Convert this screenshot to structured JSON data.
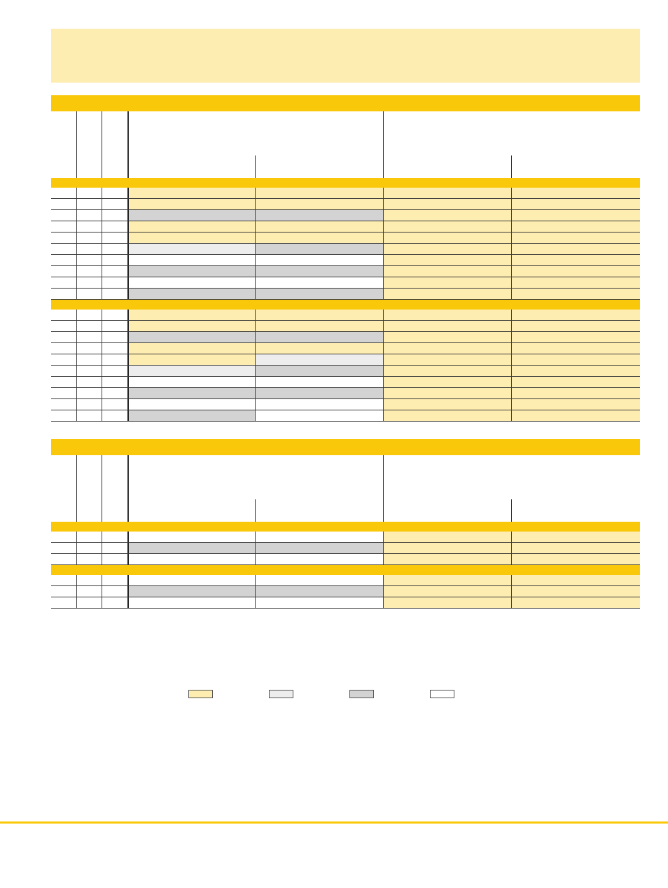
{
  "colors": {
    "yellow": "#fdedb0",
    "light_gray": "#ededed",
    "gray": "#d3d3d3",
    "white": "#ffffff",
    "accent": "#fac80a"
  },
  "tables": [
    {
      "groups": [
        {
          "rows": [
            [
              "yellow",
              "yellow",
              "yellow",
              "yellow"
            ],
            [
              "yellow",
              "yellow",
              "yellow",
              "yellow"
            ],
            [
              "gray",
              "gray",
              "yellow",
              "yellow"
            ],
            [
              "yellow",
              "yellow",
              "yellow",
              "yellow"
            ],
            [
              "yellow",
              "yellow",
              "yellow",
              "yellow"
            ],
            [
              "light_gray",
              "gray",
              "yellow",
              "yellow"
            ],
            [
              "white",
              "white",
              "yellow",
              "yellow"
            ],
            [
              "gray",
              "gray",
              "yellow",
              "yellow"
            ],
            [
              "white",
              "white",
              "yellow",
              "yellow"
            ],
            [
              "gray",
              "gray",
              "yellow",
              "yellow"
            ]
          ]
        },
        {
          "rows": [
            [
              "yellow",
              "yellow",
              "yellow",
              "yellow"
            ],
            [
              "yellow",
              "yellow",
              "yellow",
              "yellow"
            ],
            [
              "gray",
              "gray",
              "yellow",
              "yellow"
            ],
            [
              "yellow",
              "yellow",
              "yellow",
              "yellow"
            ],
            [
              "yellow",
              "light_gray",
              "yellow",
              "yellow"
            ],
            [
              "light_gray",
              "gray",
              "yellow",
              "yellow"
            ],
            [
              "white",
              "white",
              "yellow",
              "yellow"
            ],
            [
              "gray",
              "gray",
              "yellow",
              "yellow"
            ],
            [
              "white",
              "white",
              "yellow",
              "yellow"
            ],
            [
              "gray",
              "white",
              "yellow",
              "yellow"
            ]
          ]
        }
      ]
    },
    {
      "groups": [
        {
          "rows": [
            [
              "white",
              "white",
              "yellow",
              "yellow"
            ],
            [
              "gray",
              "gray",
              "yellow",
              "yellow"
            ],
            [
              "white",
              "white",
              "yellow",
              "yellow"
            ]
          ]
        },
        {
          "rows": [
            [
              "white",
              "white",
              "yellow",
              "yellow"
            ],
            [
              "gray",
              "gray",
              "yellow",
              "yellow"
            ],
            [
              "white",
              "white",
              "yellow",
              "yellow"
            ]
          ]
        }
      ]
    }
  ],
  "legend": [
    "yellow",
    "light_gray",
    "gray",
    "white"
  ]
}
